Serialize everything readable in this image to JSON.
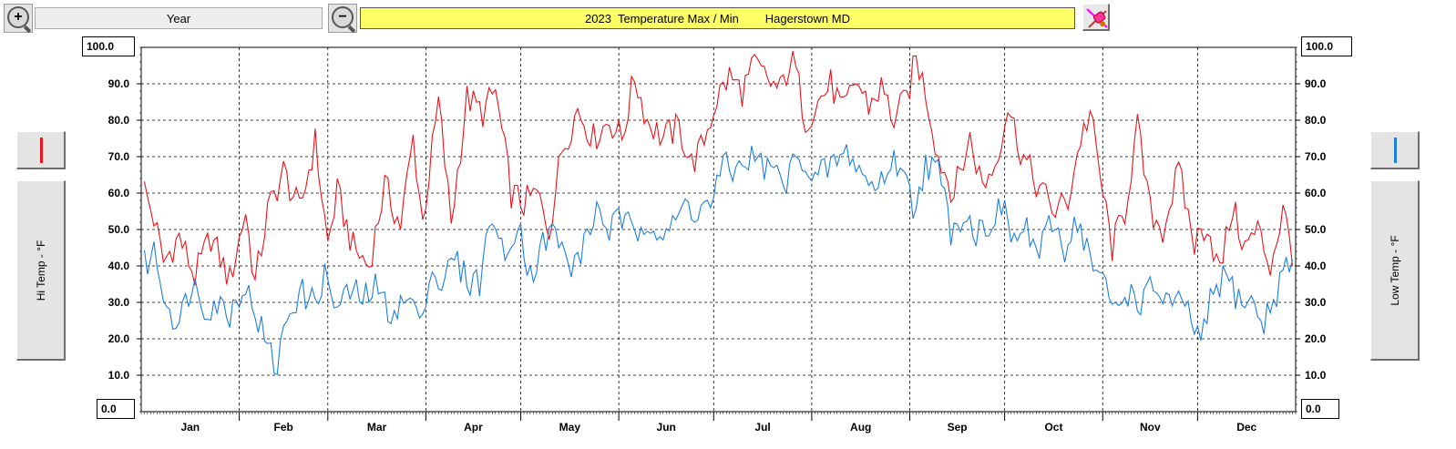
{
  "toolbar": {
    "zoom_in_icon": "zoom-in-icon",
    "zoom_out_icon": "zoom-out-icon",
    "period": "Year",
    "eraser_icon": "eraser-icon"
  },
  "colors": {
    "hi": "#e8141c",
    "low": "#1e7fe0",
    "title_bg": "#ffff66"
  },
  "chart_data": {
    "type": "line",
    "title": "2023  Temperature Max / Min        Hagerstown MD",
    "ylabel_left": "Hi Temp - °F",
    "ylabel_right": "Low Temp - °F",
    "ylim": [
      0,
      100
    ],
    "ytick_labels": [
      "10.0",
      "20.0",
      "30.0",
      "40.0",
      "50.0",
      "60.0",
      "70.0",
      "80.0",
      "90.0"
    ],
    "ymin_label": "0.0",
    "ymax_label": "100.0",
    "months": [
      "Jan",
      "Feb",
      "Mar",
      "Apr",
      "May",
      "Jun",
      "Jul",
      "Aug",
      "Sep",
      "Oct",
      "Nov",
      "Dec"
    ],
    "grid": true,
    "series": [
      {
        "key": "hi",
        "knots": [
          [
            1,
            61
          ],
          [
            4,
            53
          ],
          [
            7,
            41
          ],
          [
            12,
            48
          ],
          [
            17,
            37
          ],
          [
            22,
            48
          ],
          [
            28,
            36
          ],
          [
            33,
            55
          ],
          [
            36,
            35
          ],
          [
            40,
            55
          ],
          [
            45,
            66
          ],
          [
            50,
            55
          ],
          [
            55,
            74
          ],
          [
            59,
            46
          ],
          [
            62,
            60
          ],
          [
            67,
            45
          ],
          [
            72,
            40
          ],
          [
            77,
            62
          ],
          [
            82,
            51
          ],
          [
            86,
            75
          ],
          [
            89,
            52
          ],
          [
            94,
            85
          ],
          [
            98,
            52
          ],
          [
            103,
            86
          ],
          [
            108,
            82
          ],
          [
            112,
            88
          ],
          [
            117,
            60
          ],
          [
            121,
            57
          ],
          [
            125,
            60
          ],
          [
            129,
            50
          ],
          [
            133,
            72
          ],
          [
            138,
            83
          ],
          [
            143,
            75
          ],
          [
            148,
            80
          ],
          [
            152,
            75
          ],
          [
            156,
            92
          ],
          [
            160,
            80
          ],
          [
            165,
            75
          ],
          [
            170,
            78
          ],
          [
            174,
            68
          ],
          [
            177,
            72
          ],
          [
            182,
            86
          ],
          [
            186,
            92
          ],
          [
            190,
            88
          ],
          [
            194,
            95
          ],
          [
            198,
            91
          ],
          [
            202,
            88
          ],
          [
            206,
            98
          ],
          [
            210,
            80
          ],
          [
            214,
            85
          ],
          [
            218,
            90
          ],
          [
            222,
            82
          ],
          [
            226,
            91
          ],
          [
            230,
            84
          ],
          [
            234,
            89
          ],
          [
            238,
            80
          ],
          [
            242,
            86
          ],
          [
            245,
            97
          ],
          [
            248,
            88
          ],
          [
            252,
            70
          ],
          [
            257,
            60
          ],
          [
            262,
            75
          ],
          [
            266,
            62
          ],
          [
            270,
            68
          ],
          [
            274,
            84
          ],
          [
            278,
            72
          ],
          [
            282,
            64
          ],
          [
            285,
            60
          ],
          [
            289,
            55
          ],
          [
            293,
            58
          ],
          [
            297,
            75
          ],
          [
            300,
            82
          ],
          [
            304,
            60
          ],
          [
            307,
            45
          ],
          [
            311,
            55
          ],
          [
            315,
            78
          ],
          [
            319,
            55
          ],
          [
            323,
            50
          ],
          [
            328,
            66
          ],
          [
            333,
            46
          ],
          [
            337,
            52
          ],
          [
            341,
            38
          ],
          [
            345,
            56
          ],
          [
            349,
            45
          ],
          [
            353,
            50
          ],
          [
            357,
            40
          ],
          [
            361,
            55
          ],
          [
            364,
            44
          ]
        ]
      },
      {
        "key": "low",
        "knots": [
          [
            1,
            40
          ],
          [
            4,
            44
          ],
          [
            8,
            30
          ],
          [
            12,
            24
          ],
          [
            16,
            36
          ],
          [
            20,
            29
          ],
          [
            24,
            30
          ],
          [
            28,
            27
          ],
          [
            32,
            35
          ],
          [
            36,
            28
          ],
          [
            40,
            17
          ],
          [
            43,
            12
          ],
          [
            46,
            26
          ],
          [
            50,
            33
          ],
          [
            54,
            30
          ],
          [
            58,
            37
          ],
          [
            62,
            28
          ],
          [
            66,
            33
          ],
          [
            70,
            31
          ],
          [
            74,
            34
          ],
          [
            78,
            28
          ],
          [
            82,
            29
          ],
          [
            86,
            31
          ],
          [
            88,
            22
          ],
          [
            91,
            39
          ],
          [
            95,
            35
          ],
          [
            99,
            42
          ],
          [
            103,
            36
          ],
          [
            107,
            36
          ],
          [
            111,
            55
          ],
          [
            115,
            40
          ],
          [
            119,
            54
          ],
          [
            123,
            37
          ],
          [
            127,
            46
          ],
          [
            131,
            50
          ],
          [
            135,
            39
          ],
          [
            140,
            45
          ],
          [
            144,
            56
          ],
          [
            148,
            50
          ],
          [
            152,
            53
          ],
          [
            156,
            48
          ],
          [
            160,
            54
          ],
          [
            164,
            49
          ],
          [
            168,
            50
          ],
          [
            172,
            57
          ],
          [
            176,
            55
          ],
          [
            180,
            57
          ],
          [
            184,
            67
          ],
          [
            188,
            66
          ],
          [
            192,
            70
          ],
          [
            196,
            68
          ],
          [
            200,
            66
          ],
          [
            204,
            62
          ],
          [
            208,
            73
          ],
          [
            212,
            62
          ],
          [
            216,
            66
          ],
          [
            220,
            69
          ],
          [
            224,
            71
          ],
          [
            228,
            65
          ],
          [
            232,
            61
          ],
          [
            236,
            67
          ],
          [
            240,
            69
          ],
          [
            244,
            56
          ],
          [
            248,
            68
          ],
          [
            252,
            66
          ],
          [
            256,
            50
          ],
          [
            260,
            55
          ],
          [
            264,
            49
          ],
          [
            268,
            52
          ],
          [
            272,
            56
          ],
          [
            276,
            47
          ],
          [
            280,
            50
          ],
          [
            284,
            43
          ],
          [
            288,
            52
          ],
          [
            292,
            45
          ],
          [
            296,
            53
          ],
          [
            300,
            42
          ],
          [
            304,
            35
          ],
          [
            308,
            28
          ],
          [
            312,
            33
          ],
          [
            316,
            30
          ],
          [
            320,
            34
          ],
          [
            324,
            31
          ],
          [
            328,
            29
          ],
          [
            332,
            26
          ],
          [
            335,
            18
          ],
          [
            339,
            33
          ],
          [
            343,
            37
          ],
          [
            347,
            31
          ],
          [
            351,
            30
          ],
          [
            355,
            24
          ],
          [
            359,
            33
          ],
          [
            362,
            41
          ],
          [
            364,
            38
          ]
        ]
      }
    ]
  }
}
